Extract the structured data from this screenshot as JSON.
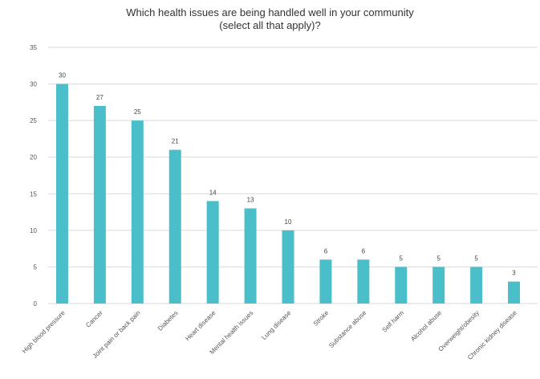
{
  "chart_data": {
    "type": "bar",
    "title_lines": [
      "Which health issues are being handled well in your community",
      "(select all that apply)?"
    ],
    "xlabel": "",
    "ylabel": "",
    "ylim": [
      0,
      35
    ],
    "yticks": [
      0,
      5,
      10,
      15,
      20,
      25,
      30,
      35
    ],
    "grid": "horizontal",
    "legend": "none",
    "bar_color": "#4bbfc9",
    "gridline_color": "#d9d9d9",
    "categories": [
      "High blood pressure",
      "Cancer",
      "Joint pain or back pain",
      "Diabetes",
      "Heart disease",
      "Mental health issues",
      "Lung disease",
      "Stroke",
      "Substance abuse",
      "Self harm",
      "Alcohol abuse",
      "Overweight/obesity",
      "Chronic kidney disease"
    ],
    "values": [
      30,
      27,
      25,
      21,
      14,
      13,
      10,
      6,
      6,
      5,
      5,
      5,
      3
    ]
  }
}
